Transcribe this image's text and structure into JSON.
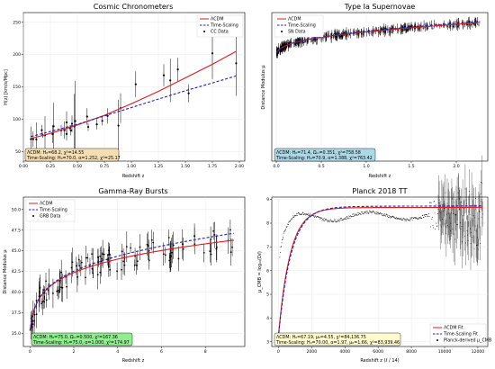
{
  "chart_data": [
    {
      "type": "scatter",
      "title": "Cosmic Chronometers",
      "xlabel": "Redshift z",
      "ylabel": "H(z) [km/s/Mpc]",
      "xlim": [
        0,
        2.05
      ],
      "ylim": [
        35,
        265
      ],
      "xticks": [
        "0.00",
        "0.25",
        "0.50",
        "0.75",
        "1.00",
        "1.25",
        "1.50",
        "1.75",
        "2.00"
      ],
      "yticks": [
        "50",
        "100",
        "150",
        "200",
        "250"
      ],
      "xtick_values": [
        0,
        0.25,
        0.5,
        0.75,
        1.0,
        1.25,
        1.5,
        1.75,
        2.0
      ],
      "ytick_values": [
        50,
        100,
        150,
        200,
        250
      ],
      "legend_position": "top-right",
      "series": [
        {
          "name": "ΛCDM",
          "kind": "line",
          "color": "#e41a1c",
          "x": [
            0.07,
            0.25,
            0.5,
            0.75,
            1.0,
            1.25,
            1.5,
            1.75,
            1.97
          ],
          "y": [
            70,
            78,
            91,
            106,
            124,
            143,
            164,
            185,
            205
          ]
        },
        {
          "name": "Time-Scaling",
          "kind": "dashed",
          "color": "#1f1fbf",
          "x": [
            0.07,
            0.25,
            0.5,
            0.75,
            1.0,
            1.25,
            1.5,
            1.75,
            1.97
          ],
          "y": [
            73,
            81,
            92,
            105,
            118,
            131,
            144,
            156,
            167
          ]
        },
        {
          "name": "CC Data",
          "kind": "errorbar",
          "color": "#000000",
          "x": [
            0.07,
            0.09,
            0.12,
            0.17,
            0.18,
            0.2,
            0.27,
            0.28,
            0.35,
            0.38,
            0.4,
            0.4,
            0.43,
            0.44,
            0.45,
            0.47,
            0.48,
            0.59,
            0.6,
            0.68,
            0.73,
            0.78,
            0.88,
            0.9,
            1.04,
            1.3,
            1.36,
            1.43,
            1.53,
            1.75,
            1.97
          ],
          "y": [
            69,
            69,
            68.6,
            83,
            75,
            75,
            77,
            88.8,
            82.7,
            83,
            95,
            77,
            86.5,
            82.6,
            92.8,
            89,
            97,
            104,
            87.9,
            92,
            97.3,
            105,
            90,
            117,
            154,
            168,
            160,
            177,
            140,
            202,
            186.5
          ],
          "err": [
            19.6,
            12,
            26.2,
            8,
            4,
            29.6,
            14,
            36.6,
            8.4,
            13.5,
            17,
            10.2,
            3.7,
            7.8,
            12.9,
            50,
            62,
            13,
            6.1,
            8,
            7,
            12,
            40,
            23,
            20,
            17,
            33.6,
            18,
            14,
            40,
            50.4
          ]
        }
      ],
      "annotation": [
        "ΛCDM: H₀=68.2, χ²=14.55",
        "Time-Scaling: H₀=70.0, α=1.252, χ²=25.17"
      ],
      "annotation_color": "#f5deb3"
    },
    {
      "type": "scatter",
      "title": "Type Ia Supernovae",
      "xlabel": "Redshift z",
      "ylabel": "Distance Modulus μ",
      "xlim": [
        -0.05,
        2.35
      ],
      "ylim": [
        -15,
        55
      ],
      "xticks": [
        "0.0",
        "0.5",
        "1.0",
        "1.5",
        "2.0"
      ],
      "xtick_values": [
        0,
        0.5,
        1.0,
        1.5,
        2.0
      ],
      "yticks": [],
      "legend_position": "top-left",
      "series": [
        {
          "name": "ΛCDM",
          "kind": "line",
          "color": "#e41a1c"
        },
        {
          "name": "Time-Scaling",
          "kind": "dashed",
          "color": "#1f1fbf"
        },
        {
          "name": "SN Data",
          "kind": "errorbar",
          "color": "#000000"
        }
      ],
      "annotation": [
        "ΛCDM: H₀=71.4, Ωₘ=0.351, χ²=758.58",
        "Time-Scaling: H₀=70.9, α=1.388, χ²=763.42"
      ],
      "annotation_color": "#add8e6"
    },
    {
      "type": "scatter",
      "title": "Gamma-Ray Bursts",
      "xlabel": "Redshift z",
      "ylabel": "Distance Modulus μ",
      "xlim": [
        -0.3,
        9.8
      ],
      "ylim": [
        33.4,
        51.5
      ],
      "xticks": [
        "0",
        "2",
        "4",
        "6",
        "8"
      ],
      "xtick_values": [
        0,
        2,
        4,
        6,
        8
      ],
      "yticks": [
        "35.0",
        "37.5",
        "40.0",
        "42.5",
        "45.0",
        "47.5",
        "50.0"
      ],
      "ytick_values": [
        35,
        37.5,
        40,
        42.5,
        45,
        47.5,
        50
      ],
      "legend_position": "top-left",
      "series": [
        {
          "name": "ΛCDM",
          "kind": "line",
          "color": "#e41a1c"
        },
        {
          "name": "Time-Scaling",
          "kind": "dashed",
          "color": "#1f1fbf"
        },
        {
          "name": "GRB Data",
          "kind": "errorbar",
          "color": "#000000"
        }
      ],
      "annotation": [
        "ΛCDM: H₀=75.0, Ωₘ=0.500, χ²=167.36",
        "Time-Scaling: H₀=75.0, α=1.000, χ²=174.97"
      ],
      "annotation_color": "#90ee90"
    },
    {
      "type": "scatter",
      "title": "Planck 2018 TT",
      "xlabel": "Redshift z (ℓ / 14)",
      "ylabel": "μ_CMB = log₁₀(Dℓ)",
      "xlim": [
        -400,
        12600
      ],
      "ylim": [
        2.8,
        9.1
      ],
      "xticks": [
        "0",
        "2000",
        "4000",
        "6000",
        "8000",
        "10000",
        "12000"
      ],
      "xtick_values": [
        0,
        2000,
        4000,
        6000,
        8000,
        10000,
        12000
      ],
      "yticks": [
        "3",
        "4",
        "5",
        "6",
        "7",
        "8",
        "9"
      ],
      "ytick_values": [
        3,
        4,
        5,
        6,
        7,
        8,
        9
      ],
      "legend_position": "bottom-right",
      "series": [
        {
          "name": "ΛCDM Fit",
          "kind": "line",
          "color": "#e41a1c"
        },
        {
          "name": "Time-Scaling Fit",
          "kind": "dashed",
          "color": "#1f1fbf"
        },
        {
          "name": "Planck-derived μ_CMB",
          "kind": "errorbar",
          "color": "#000000"
        }
      ],
      "annotation": [
        "ΛCDM: H₀=67.19, μ₀=4.55, χ²=84,136.75",
        "Time-Scaling: H₀=70.00, α=1.97, μ₀=1.66, χ²=83,939.46"
      ],
      "annotation_color": "#fffacd"
    }
  ]
}
